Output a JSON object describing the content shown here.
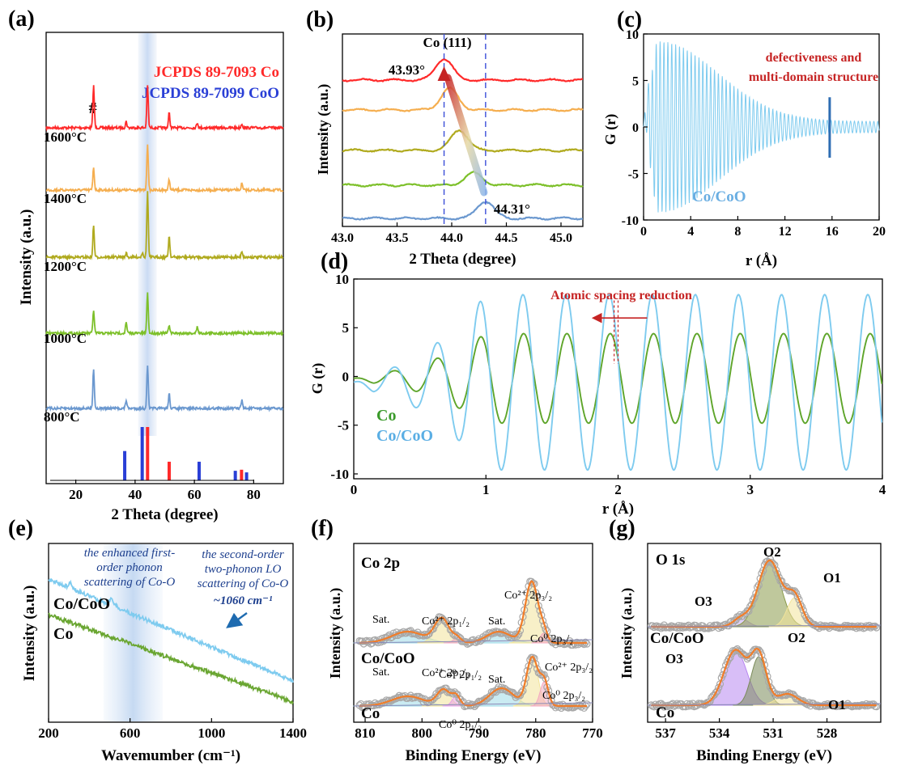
{
  "panels": [
    {
      "id": "a",
      "label": "(a)",
      "type": "line",
      "xlabel": "2 Theta (degree)",
      "ylabel": "Intensity (a.u.)",
      "xlim": [
        10,
        90
      ],
      "xticks": [
        20,
        40,
        60,
        80
      ],
      "legend": [
        {
          "text": "JCPDS 89-7093 Co",
          "color": "#ff2a2a"
        },
        {
          "text": "JCPDS 89-7099 CoO",
          "color": "#2a3fd6"
        }
      ],
      "peak_marker": {
        "text": "#",
        "x": 26
      },
      "highlight_x": 44,
      "series": [
        {
          "name": "1600°C",
          "color": "#ff2a2a",
          "peaks": [
            [
              26,
              1.0
            ],
            [
              37,
              0.15
            ],
            [
              44.2,
              1.0
            ],
            [
              51.5,
              0.35
            ],
            [
              61,
              0.12
            ],
            [
              76,
              0.1
            ]
          ]
        },
        {
          "name": "1400°C",
          "color": "#f5ae4f",
          "peaks": [
            [
              26,
              0.55
            ],
            [
              44.2,
              1.1
            ],
            [
              51.5,
              0.25
            ],
            [
              76,
              0.15
            ]
          ]
        },
        {
          "name": "1200°C",
          "color": "#b0aa1e",
          "peaks": [
            [
              26,
              0.75
            ],
            [
              37,
              0.1
            ],
            [
              42.5,
              0.12
            ],
            [
              44.2,
              1.55
            ],
            [
              51.5,
              0.5
            ],
            [
              76,
              0.15
            ]
          ]
        },
        {
          "name": "1000°C",
          "color": "#7dc02a",
          "peaks": [
            [
              26,
              0.55
            ],
            [
              37,
              0.25
            ],
            [
              44.2,
              0.95
            ],
            [
              51.5,
              0.2
            ],
            [
              61,
              0.15
            ]
          ]
        },
        {
          "name": "800°C",
          "color": "#6b98cf",
          "peaks": [
            [
              26,
              0.95
            ],
            [
              37,
              0.2
            ],
            [
              44.2,
              1.0
            ],
            [
              51.5,
              0.35
            ],
            [
              76,
              0.2
            ]
          ]
        }
      ],
      "reference_bars": [
        {
          "x": 36.5,
          "h": 0.55,
          "color": "#2a3fd6"
        },
        {
          "x": 42.4,
          "h": 1.0,
          "color": "#2a3fd6"
        },
        {
          "x": 44.2,
          "h": 1.0,
          "color": "#ff2a2a"
        },
        {
          "x": 51.5,
          "h": 0.35,
          "color": "#ff2a2a"
        },
        {
          "x": 61.6,
          "h": 0.35,
          "color": "#2a3fd6"
        },
        {
          "x": 73.8,
          "h": 0.18,
          "color": "#2a3fd6"
        },
        {
          "x": 75.9,
          "h": 0.2,
          "color": "#ff2a2a"
        },
        {
          "x": 77.6,
          "h": 0.15,
          "color": "#2a3fd6"
        }
      ]
    },
    {
      "id": "b",
      "label": "(b)",
      "type": "line",
      "xlabel": "2 Theta (degree)",
      "ylabel": "Intensity (a.u.)",
      "xlim": [
        43.0,
        45.2
      ],
      "xticks": [
        "43.0",
        "43.5",
        "44.0",
        "44.5",
        "45.0"
      ],
      "peak_label": "Co (111)",
      "annotations": [
        "43.93°",
        "44.31°"
      ],
      "dashed_x": [
        43.93,
        44.31
      ],
      "series": [
        {
          "color": "#ff2a2a",
          "center": 43.93,
          "height": 0.95
        },
        {
          "color": "#f5ae4f",
          "center": 43.98,
          "height": 0.95
        },
        {
          "color": "#b0aa1e",
          "center": 44.07,
          "height": 0.9
        },
        {
          "color": "#7dc02a",
          "center": 44.2,
          "height": 0.55
        },
        {
          "color": "#6b98cf",
          "center": 44.31,
          "height": 0.75
        }
      ]
    },
    {
      "id": "c",
      "label": "(c)",
      "type": "line",
      "xlabel": "r (Å)",
      "ylabel": "G (r)",
      "xlim": [
        0,
        20
      ],
      "ylim": [
        -10,
        10
      ],
      "xticks": [
        0,
        4,
        8,
        12,
        16,
        20
      ],
      "yticks": [
        -10,
        -5,
        0,
        5,
        10
      ],
      "annotation": "defectiveness and multi-domain structure",
      "marker_x": 15.8,
      "series": [
        {
          "name": "Co/CoO",
          "color": "#7ecbef"
        }
      ]
    },
    {
      "id": "d",
      "label": "(d)",
      "type": "line",
      "xlabel": "r (Å)",
      "ylabel": "G (r)",
      "xlim": [
        0,
        4
      ],
      "ylim": [
        -10.5,
        10
      ],
      "xticks": [
        0,
        1,
        2,
        3,
        4
      ],
      "yticks": [
        -10,
        -5,
        0,
        5,
        10
      ],
      "annotation": "Atomic spacing reduction",
      "series": [
        {
          "name": "Co",
          "color": "#5ea52a",
          "amplitude": 4.2
        },
        {
          "name": "Co/CoO",
          "color": "#7ecbef",
          "amplitude": 8.2
        }
      ]
    },
    {
      "id": "e",
      "label": "(e)",
      "type": "line",
      "xlabel": "Wavemumber (cm⁻¹)",
      "ylabel": "Intensity (a.u.)",
      "xlim": [
        200,
        1400
      ],
      "xticks": [
        200,
        600,
        1000,
        1400
      ],
      "annotations": [
        "the enhanced first-",
        "order phonon",
        "scattering of Co-O",
        "the second-order",
        "two-phonon LO",
        "scattering of Co-O",
        "~1060 cm⁻¹"
      ],
      "series": [
        {
          "name": "Co/CoO",
          "color": "#7ecbef"
        },
        {
          "name": "Co",
          "color": "#6aa632"
        }
      ]
    },
    {
      "id": "f",
      "label": "(f)",
      "type": "line",
      "xlabel": "Binding Energy (eV)",
      "ylabel": "Intensity (a.u.)",
      "xlim": [
        812,
        770
      ],
      "xticks": [
        810,
        800,
        790,
        780,
        770
      ],
      "title": "Co 2p",
      "peak_labels": [
        "Sat.",
        "Co²⁺ 2p₁/₂",
        "Sat.",
        "Co²⁺ 2p₃/₂",
        "Co⁰ 2p₃/₂",
        "Co⁰ 2p₁/₂"
      ],
      "series": [
        {
          "name": "Co/CoO"
        },
        {
          "name": "Co"
        }
      ]
    },
    {
      "id": "g",
      "label": "(g)",
      "type": "line",
      "xlabel": "Binding Energy (eV)",
      "ylabel": "Intensity (a.u.)",
      "xlim": [
        538,
        525
      ],
      "xticks": [
        537,
        534,
        531,
        528
      ],
      "title": "O 1s",
      "peak_labels": [
        "O2",
        "O1",
        "O3"
      ],
      "series": [
        {
          "name": "Co/CoO"
        },
        {
          "name": "Co"
        }
      ]
    }
  ]
}
